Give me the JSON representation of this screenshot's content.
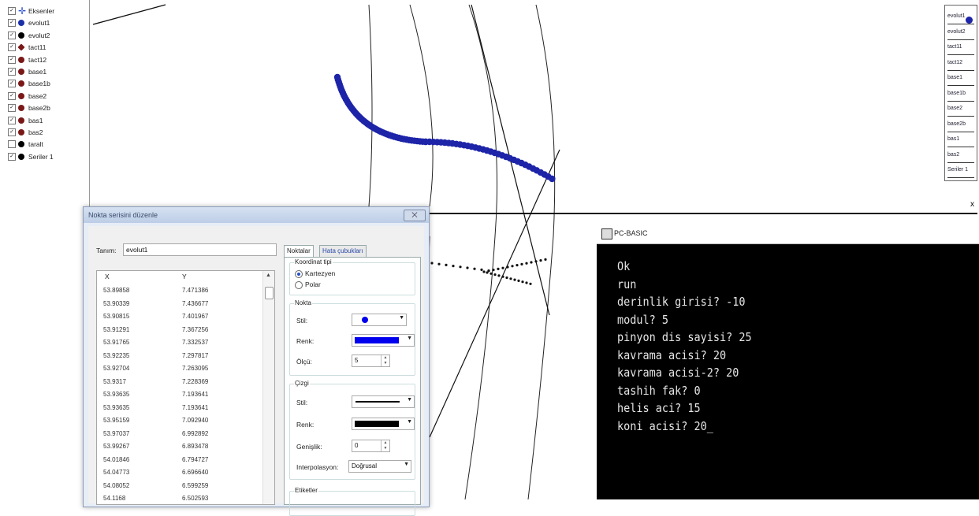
{
  "sidebar": {
    "items": [
      {
        "label": "Eksenler",
        "checked": true,
        "icon": "axes-cross-icon",
        "color": "#2d4fd0"
      },
      {
        "label": "evolut1",
        "checked": true,
        "icon": "dot-icon",
        "color": "#1a2fa8"
      },
      {
        "label": "evolut2",
        "checked": true,
        "icon": "dot-icon",
        "color": "#000000"
      },
      {
        "label": "tact11",
        "checked": true,
        "icon": "diamond-icon",
        "color": "#7a1818"
      },
      {
        "label": "tact12",
        "checked": true,
        "icon": "dot-icon",
        "color": "#7a1818"
      },
      {
        "label": "base1",
        "checked": true,
        "icon": "dot-icon",
        "color": "#7a1818"
      },
      {
        "label": "base1b",
        "checked": true,
        "icon": "dot-icon",
        "color": "#7a1818"
      },
      {
        "label": "base2",
        "checked": true,
        "icon": "dot-icon",
        "color": "#7a1818"
      },
      {
        "label": "base2b",
        "checked": true,
        "icon": "dot-icon",
        "color": "#7a1818"
      },
      {
        "label": "bas1",
        "checked": true,
        "icon": "dot-icon",
        "color": "#7a1818"
      },
      {
        "label": "bas2",
        "checked": true,
        "icon": "dot-icon",
        "color": "#7a1818"
      },
      {
        "label": "taralt",
        "checked": false,
        "icon": "dot-icon",
        "color": "#000000"
      },
      {
        "label": "Seriler 1",
        "checked": true,
        "icon": "dot-icon",
        "color": "#000000"
      }
    ]
  },
  "legend": {
    "items": [
      "evolut1",
      "evolut2",
      "tact11",
      "tact12",
      "base1",
      "base1b",
      "base2",
      "base2b",
      "bas1",
      "bas2",
      "Seriler 1"
    ]
  },
  "plot": {
    "x_axis_label": "x",
    "series_color": "#1d24a8"
  },
  "dialog": {
    "title": "Nokta serisini düzenle",
    "close_label": "⨉",
    "name_label": "Tanım:",
    "name_value": "evolut1",
    "table": {
      "headers": [
        "X",
        "Y"
      ],
      "rows": [
        [
          "53.89858",
          "7.471386"
        ],
        [
          "53.90339",
          "7.436677"
        ],
        [
          "53.90815",
          "7.401967"
        ],
        [
          "53.91291",
          "7.367256"
        ],
        [
          "53.91765",
          "7.332537"
        ],
        [
          "53.92235",
          "7.297817"
        ],
        [
          "53.92704",
          "7.263095"
        ],
        [
          "53.9317",
          "7.228369"
        ],
        [
          "53.93635",
          "7.193641"
        ],
        [
          "53.93635",
          "7.193641"
        ],
        [
          "53.95159",
          "7.092940"
        ],
        [
          "53.97037",
          "6.992892"
        ],
        [
          "53.99267",
          "6.893478"
        ],
        [
          "54.01846",
          "6.794727"
        ],
        [
          "54.04773",
          "6.696640"
        ],
        [
          "54.08052",
          "6.599259"
        ],
        [
          "54.1168",
          "6.502593"
        ]
      ]
    },
    "tabs": [
      "Noktalar",
      "Hata çubukları"
    ],
    "coord_group": {
      "title": "Koordinat tipi",
      "options": [
        "Kartezyen",
        "Polar"
      ],
      "selected": "Kartezyen"
    },
    "point_group": {
      "title": "Nokta",
      "style_label": "Stil:",
      "color_label": "Renk:",
      "size_label": "Ölçü:",
      "size_value": "5",
      "color": "#0000ee"
    },
    "line_group": {
      "title": "Çizgi",
      "style_label": "Stil:",
      "color_label": "Renk:",
      "width_label": "Genişlik:",
      "width_value": "0",
      "interp_label": "Interpolasyon:",
      "interp_value": "Doğrusal",
      "color": "#000000"
    },
    "labels_group": {
      "title": "Etiketler"
    }
  },
  "terminal": {
    "title": "PC-BASIC",
    "lines": [
      "Ok",
      "run",
      "derinlik girisi? -10",
      "modul? 5",
      "pinyon dis sayisi? 25",
      "kavrama acisi? 20",
      "kavrama acisi-2? 20",
      "tashih fak? 0",
      "helis aci? 15",
      "koni acisi? 20_"
    ]
  }
}
